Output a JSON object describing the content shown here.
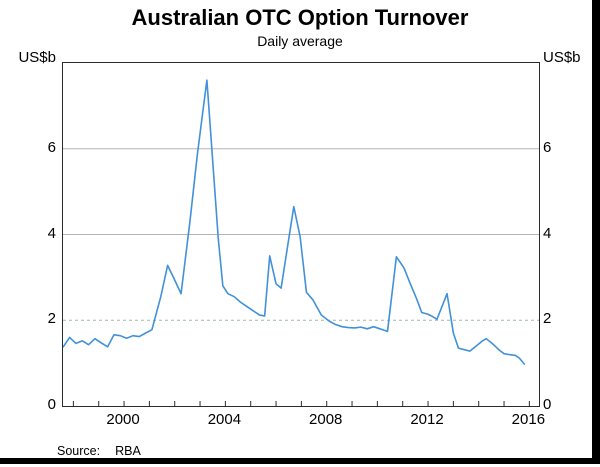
{
  "title": "Australian OTC Option Turnover",
  "subtitle": "Daily average",
  "source": {
    "label": "Source:",
    "value": "RBA"
  },
  "axes": {
    "y_unit_left": "US$b",
    "y_unit_right": "US$b",
    "y_tick_labels": [
      0,
      2,
      4,
      6
    ],
    "x_tick_labels": [
      2000,
      2004,
      2008,
      2012,
      2016
    ]
  },
  "colors": {
    "line": "#4191d9",
    "grid_solid": "#b3b3b3",
    "grid_dashed": "#9fbc9f",
    "frame": "#2b2b2b",
    "edge_bars": "#000000"
  },
  "chart_data": {
    "type": "line",
    "title": "Australian OTC Option Turnover",
    "subtitle": "Daily average",
    "xlabel": "",
    "ylabel": "US$b",
    "ylim": [
      0,
      8
    ],
    "xlim": [
      1997.59,
      2016.38
    ],
    "y_ticks_labeled": [
      0,
      2,
      4,
      6
    ],
    "x_ticks_labeled": [
      2000,
      2004,
      2008,
      2012,
      2016
    ],
    "x_minor_ticks_every": 1,
    "gridlines_solid_at": [
      4,
      6
    ],
    "gridlines_dashed_at": [
      2
    ],
    "legend": "none",
    "x": [
      1997.6,
      1997.85,
      1998.1,
      1998.35,
      1998.6,
      1998.85,
      1999.1,
      1999.35,
      1999.6,
      1999.85,
      2000.1,
      2000.35,
      2000.6,
      2000.85,
      2001.1,
      2001.45,
      2001.72,
      2001.95,
      2002.25,
      2002.6,
      2002.9,
      2003.27,
      2003.55,
      2003.72,
      2003.9,
      2004.1,
      2004.35,
      2004.6,
      2004.85,
      2005.1,
      2005.35,
      2005.55,
      2005.75,
      2006.0,
      2006.2,
      2006.7,
      2006.95,
      2007.2,
      2007.45,
      2007.79,
      2008.1,
      2008.35,
      2008.6,
      2008.85,
      2009.1,
      2009.35,
      2009.6,
      2009.85,
      2010.1,
      2010.4,
      2010.75,
      2011.05,
      2011.3,
      2011.55,
      2011.75,
      2012.0,
      2012.2,
      2012.35,
      2012.75,
      2013.0,
      2013.2,
      2013.45,
      2013.65,
      2013.9,
      2014.15,
      2014.3,
      2014.55,
      2014.8,
      2015.0,
      2015.2,
      2015.45,
      2015.6,
      2015.8
    ],
    "series": [
      {
        "name": "Australian OTC option turnover (daily average, US$b)",
        "values": [
          1.38,
          1.6,
          1.46,
          1.52,
          1.43,
          1.57,
          1.47,
          1.38,
          1.66,
          1.64,
          1.58,
          1.64,
          1.62,
          1.7,
          1.78,
          2.55,
          3.28,
          3.0,
          2.62,
          4.3,
          5.9,
          7.6,
          5.3,
          3.9,
          2.8,
          2.62,
          2.55,
          2.42,
          2.32,
          2.22,
          2.12,
          2.1,
          3.5,
          2.85,
          2.75,
          4.65,
          3.95,
          2.65,
          2.48,
          2.12,
          1.98,
          1.9,
          1.85,
          1.83,
          1.82,
          1.84,
          1.8,
          1.85,
          1.8,
          1.74,
          3.48,
          3.22,
          2.85,
          2.5,
          2.18,
          2.14,
          2.08,
          2.02,
          2.62,
          1.7,
          1.35,
          1.31,
          1.28,
          1.4,
          1.52,
          1.57,
          1.45,
          1.31,
          1.22,
          1.2,
          1.18,
          1.12,
          0.98
        ]
      }
    ]
  }
}
